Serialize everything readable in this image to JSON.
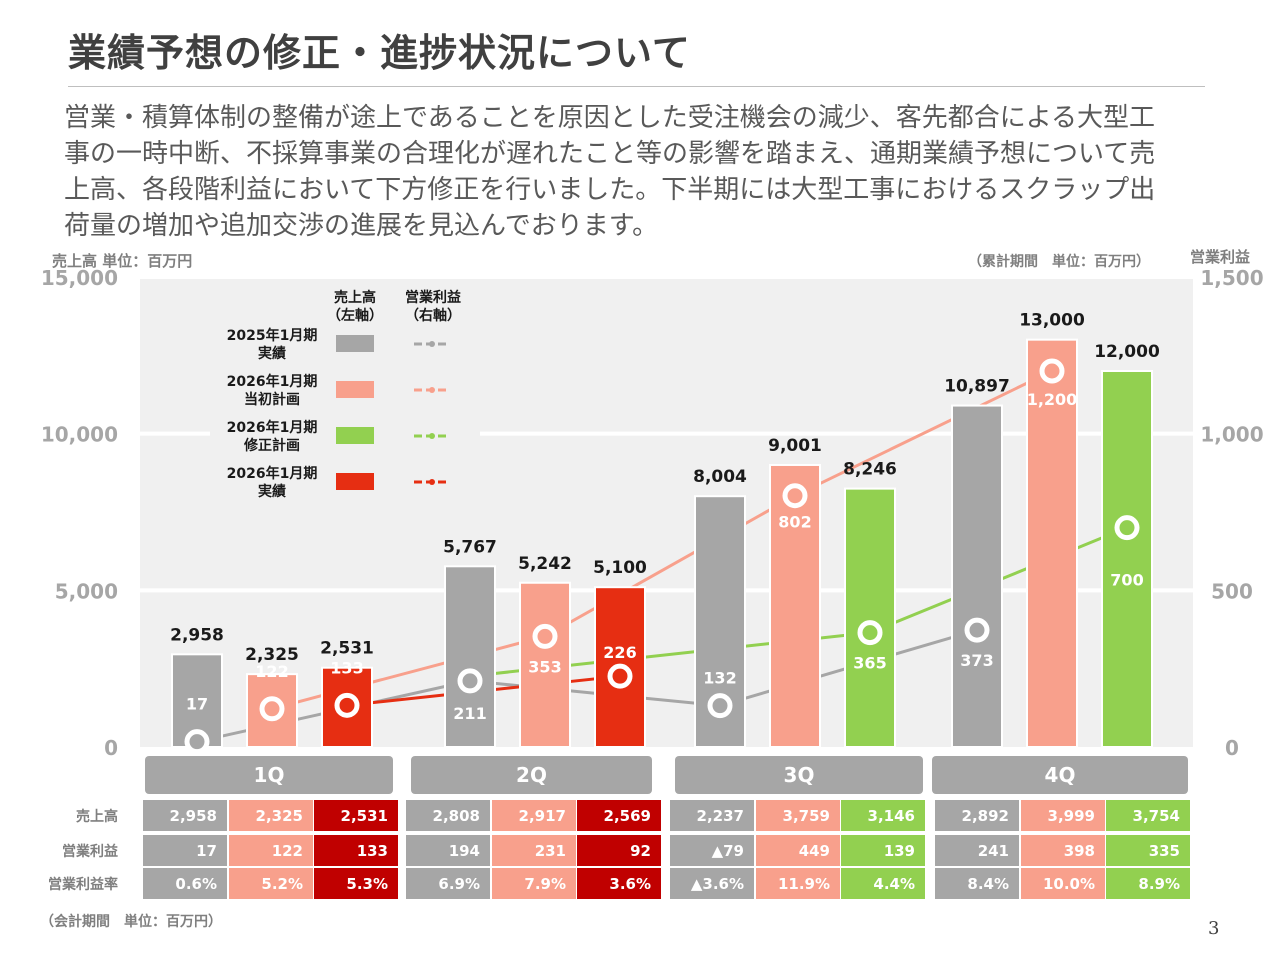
{
  "title": "業績予想の修正・進捗状況について",
  "intro_lines": [
    "営業・積算体制の整備が途上であることを原因とした受注機会の減少、客先都合による大型工",
    "事の一時中断、不採算事業の合理化が遅れたこと等の影響を踏まえ、通期業績予想について売",
    "上高、各段階利益において下方修正を行いました。下半期には大型工事におけるスクラップ出",
    "荷量の増加や追加交渉の進展を見込んでおります。"
  ],
  "page_number": "3",
  "colors": {
    "fy25_actual": "#a6a6a6",
    "fy26_initial": "#f8a08c",
    "fy26_revised": "#92d050",
    "fy26_actual": "#e62e12",
    "table_actual_dark": "#c00000",
    "plot_bg": "#f0f0f0",
    "quarter_tab": "#a6a6a6"
  },
  "chart_data": {
    "type": "bar",
    "left_axis_caption": "売上高  単位：百万円",
    "right_axis_caption": "営業利益",
    "period_note": "（累計期間　単位：百万円）",
    "y_left_ticks": [
      "15,000",
      "10,000",
      "5,000",
      "0"
    ],
    "y_right_ticks": [
      "1,500",
      "1,000",
      "500",
      "0"
    ],
    "ylim_left": [
      0,
      15000
    ],
    "ylim_right": [
      0,
      1500
    ],
    "legend_headers": [
      "売上高\n（左軸）",
      "営業利益\n（右軸）"
    ],
    "series": [
      {
        "name": "2025年1月期\n実績",
        "color": "#a6a6a6"
      },
      {
        "name": "2026年1月期\n当初計画",
        "color": "#f8a08c"
      },
      {
        "name": "2026年1月期\n修正計画",
        "color": "#92d050"
      },
      {
        "name": "2026年1月期\n実績",
        "color": "#e62e12"
      }
    ],
    "quarters": [
      {
        "label": "1Q",
        "bars": [
          {
            "series": 0,
            "sales": 2958,
            "sales_label": "2,958",
            "profit": 17,
            "profit_label": "17"
          },
          {
            "series": 1,
            "sales": 2325,
            "sales_label": "2,325",
            "profit": 122,
            "profit_label": "122"
          },
          {
            "series": 3,
            "sales": 2531,
            "sales_label": "2,531",
            "profit": 133,
            "profit_label": "133"
          }
        ]
      },
      {
        "label": "2Q",
        "bars": [
          {
            "series": 0,
            "sales": 5767,
            "sales_label": "5,767",
            "profit": 211,
            "profit_label": "211"
          },
          {
            "series": 1,
            "sales": 5242,
            "sales_label": "5,242",
            "profit": 353,
            "profit_label": "353"
          },
          {
            "series": 3,
            "sales": 5100,
            "sales_label": "5,100",
            "profit": 226,
            "profit_label": "226"
          }
        ]
      },
      {
        "label": "3Q",
        "bars": [
          {
            "series": 0,
            "sales": 8004,
            "sales_label": "8,004",
            "profit": 132,
            "profit_label": "132"
          },
          {
            "series": 1,
            "sales": 9001,
            "sales_label": "9,001",
            "profit": 802,
            "profit_label": "802"
          },
          {
            "series": 2,
            "sales": 8246,
            "sales_label": "8,246",
            "profit": 365,
            "profit_label": "365"
          }
        ]
      },
      {
        "label": "4Q",
        "bars": [
          {
            "series": 0,
            "sales": 10897,
            "sales_label": "10,897",
            "profit": 373,
            "profit_label": "373"
          },
          {
            "series": 1,
            "sales": 13000,
            "sales_label": "13,000",
            "profit": 1200,
            "profit_label": "1,200"
          },
          {
            "series": 2,
            "sales": 12000,
            "sales_label": "12,000",
            "profit": 700,
            "profit_label": "700"
          }
        ]
      }
    ],
    "lines": [
      {
        "series": 0,
        "points": [
          [
            0,
            17
          ],
          [
            1,
            211
          ],
          [
            2,
            132
          ],
          [
            3,
            373
          ]
        ]
      },
      {
        "series": 1,
        "points": [
          [
            0,
            122
          ],
          [
            1,
            353
          ],
          [
            2,
            802
          ],
          [
            3,
            1200
          ]
        ]
      },
      {
        "series": 2,
        "points": [
          [
            1,
            226
          ],
          [
            2,
            365
          ],
          [
            3,
            700
          ]
        ]
      },
      {
        "series": 3,
        "points": [
          [
            0,
            133
          ],
          [
            1,
            226
          ]
        ]
      }
    ]
  },
  "table": {
    "row_labels": [
      "売上高",
      "営業利益",
      "営業利益率"
    ],
    "footnote": "（会計期間　単位：百万円）",
    "quarters": [
      {
        "cols": [
          {
            "series": 0,
            "values": [
              "2,958",
              "17",
              "0.6%"
            ]
          },
          {
            "series": 1,
            "values": [
              "2,325",
              "122",
              "5.2%"
            ]
          },
          {
            "series": 3,
            "values": [
              "2,531",
              "133",
              "5.3%"
            ]
          }
        ]
      },
      {
        "cols": [
          {
            "series": 0,
            "values": [
              "2,808",
              "194",
              "6.9%"
            ]
          },
          {
            "series": 1,
            "values": [
              "2,917",
              "231",
              "7.9%"
            ]
          },
          {
            "series": 3,
            "values": [
              "2,569",
              "92",
              "3.6%"
            ]
          }
        ]
      },
      {
        "cols": [
          {
            "series": 0,
            "values": [
              "2,237",
              "▲79",
              "▲3.6%"
            ]
          },
          {
            "series": 1,
            "values": [
              "3,759",
              "449",
              "11.9%"
            ]
          },
          {
            "series": 2,
            "values": [
              "3,146",
              "139",
              "4.4%"
            ]
          }
        ]
      },
      {
        "cols": [
          {
            "series": 0,
            "values": [
              "2,892",
              "241",
              "8.4%"
            ]
          },
          {
            "series": 1,
            "values": [
              "3,999",
              "398",
              "10.0%"
            ]
          },
          {
            "series": 2,
            "values": [
              "3,754",
              "335",
              "8.9%"
            ]
          }
        ]
      }
    ]
  }
}
